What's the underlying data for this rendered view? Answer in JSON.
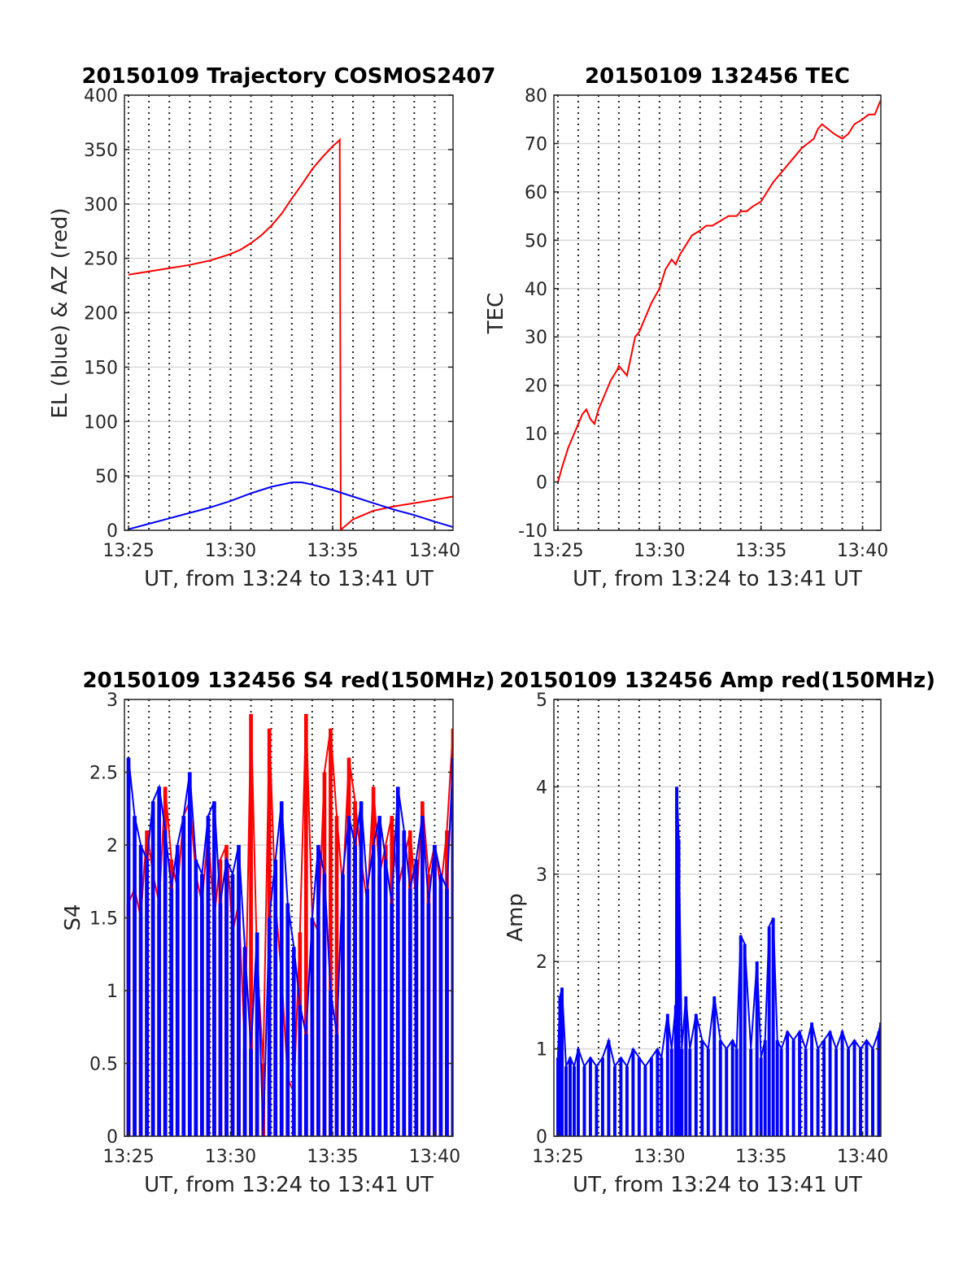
{
  "figure": {
    "colors": {
      "red": "#ff0000",
      "blue": "#0000ff",
      "grid": "#262626",
      "axis": "#262626"
    }
  },
  "chart_data": [
    {
      "id": "trajectory",
      "type": "line",
      "title": "20150109 Trajectory COSMOS2407",
      "xlabel": "UT, from 13:24 to 13:41 UT",
      "ylabel": "EL (blue) & AZ (red)",
      "xlim_minutes": [
        24.8,
        40.9
      ],
      "xticks": [
        {
          "value": 25,
          "label": "13:25"
        },
        {
          "value": 30,
          "label": "13:30"
        },
        {
          "value": 35,
          "label": "13:35"
        },
        {
          "value": 40,
          "label": "13:40"
        }
      ],
      "ylim": [
        0,
        400
      ],
      "yticks": [
        0,
        50,
        100,
        150,
        200,
        250,
        300,
        350,
        400
      ],
      "vertical_dotted_grid_minutes": [
        25,
        26,
        27,
        28,
        29,
        30,
        31,
        32,
        33,
        34,
        35,
        36,
        37,
        38,
        39,
        40
      ],
      "horizontal_grid": true,
      "series": [
        {
          "color": "red",
          "x": [
            25.0,
            26.0,
            27.0,
            28.0,
            29.0,
            30.0,
            30.5,
            31.0,
            31.5,
            32.0,
            32.5,
            33.0,
            33.5,
            34.0,
            34.5,
            35.0,
            35.3,
            35.35,
            35.4,
            35.5,
            36.0,
            37.0,
            38.0,
            39.0,
            40.0,
            40.9
          ],
          "y": [
            235,
            238,
            241,
            244,
            248,
            254,
            258,
            264,
            271,
            280,
            291,
            305,
            318,
            332,
            343,
            353,
            358,
            359,
            0,
            2,
            10,
            18,
            22,
            25,
            28,
            31
          ]
        },
        {
          "color": "blue",
          "x": [
            25.0,
            26.0,
            27.0,
            28.0,
            29.0,
            30.0,
            31.0,
            32.0,
            33.0,
            33.5,
            34.0,
            35.0,
            36.0,
            37.0,
            38.0,
            39.0,
            40.0,
            40.9
          ],
          "y": [
            1,
            6,
            11,
            16,
            21,
            27,
            34,
            40,
            44,
            44,
            42,
            37,
            31,
            25,
            19,
            14,
            8,
            3
          ]
        }
      ]
    },
    {
      "id": "tec",
      "type": "line",
      "title": "20150109 132456 TEC",
      "xlabel": "UT, from 13:24 to 13:41 UT",
      "ylabel": "TEC",
      "xlim_minutes": [
        24.8,
        40.9
      ],
      "xticks": [
        {
          "value": 25,
          "label": "13:25"
        },
        {
          "value": 30,
          "label": "13:30"
        },
        {
          "value": 35,
          "label": "13:35"
        },
        {
          "value": 40,
          "label": "13:40"
        }
      ],
      "ylim": [
        -10,
        80
      ],
      "yticks": [
        -10,
        0,
        10,
        20,
        30,
        40,
        50,
        60,
        70,
        80
      ],
      "vertical_dotted_grid_minutes": [
        25,
        26,
        27,
        28,
        29,
        30,
        31,
        32,
        33,
        34,
        35,
        36,
        37,
        38,
        39,
        40
      ],
      "horizontal_grid": true,
      "series": [
        {
          "color": "red",
          "x": [
            25.0,
            25.2,
            25.5,
            25.8,
            26.0,
            26.2,
            26.4,
            26.6,
            26.8,
            27.0,
            27.3,
            27.6,
            27.9,
            28.0,
            28.2,
            28.4,
            28.6,
            28.8,
            29.0,
            29.3,
            29.6,
            30.0,
            30.3,
            30.6,
            30.8,
            31.0,
            31.3,
            31.6,
            32.0,
            32.3,
            32.6,
            33.0,
            33.4,
            33.8,
            34.0,
            34.3,
            34.6,
            35.0,
            35.3,
            35.6,
            36.0,
            36.4,
            36.8,
            37.0,
            37.3,
            37.6,
            37.8,
            38.0,
            38.3,
            38.6,
            39.0,
            39.3,
            39.6,
            40.0,
            40.3,
            40.6,
            40.9
          ],
          "y": [
            0,
            3,
            7,
            10,
            12,
            14,
            15,
            13,
            12,
            15,
            18,
            21,
            23,
            24,
            23,
            22,
            26,
            30,
            31,
            34,
            37,
            40,
            44,
            46,
            45,
            47,
            49,
            51,
            52,
            53,
            53,
            54,
            55,
            55,
            56,
            56,
            57,
            58,
            60,
            62,
            64,
            66,
            68,
            69,
            70,
            71,
            73,
            74,
            73,
            72,
            71,
            72,
            74,
            75,
            76,
            76,
            79
          ]
        }
      ]
    },
    {
      "id": "s4",
      "type": "bar",
      "title": "20150109 132456 S4 red(150MHz)",
      "xlabel": "UT, from 13:24 to 13:41 UT",
      "ylabel": "S4",
      "xlim_minutes": [
        24.8,
        40.9
      ],
      "xticks": [
        {
          "value": 25,
          "label": "13:25"
        },
        {
          "value": 30,
          "label": "13:30"
        },
        {
          "value": 35,
          "label": "13:35"
        },
        {
          "value": 40,
          "label": "13:40"
        }
      ],
      "ylim": [
        0,
        3
      ],
      "yticks": [
        {
          "value": 0,
          "label": "0"
        },
        {
          "value": 0.5,
          "label": "0.5"
        },
        {
          "value": 1,
          "label": "1"
        },
        {
          "value": 1.5,
          "label": "1.5"
        },
        {
          "value": 2,
          "label": "2"
        },
        {
          "value": 2.5,
          "label": "2.5"
        },
        {
          "value": 3,
          "label": "3"
        }
      ],
      "vertical_dotted_grid_minutes": [
        25,
        26,
        27,
        28,
        29,
        30,
        31,
        32,
        33,
        34,
        35,
        36,
        37,
        38,
        39,
        40
      ],
      "horizontal_grid": true,
      "series": [
        {
          "color": "red",
          "x": [
            25.0,
            25.3,
            25.6,
            25.9,
            26.2,
            26.5,
            26.8,
            27.1,
            27.4,
            27.7,
            28.0,
            28.3,
            28.6,
            28.9,
            29.2,
            29.5,
            29.8,
            30.1,
            30.4,
            30.7,
            31.0,
            31.3,
            31.6,
            31.9,
            32.2,
            32.5,
            32.8,
            33.1,
            33.4,
            33.7,
            34.0,
            34.3,
            34.6,
            34.9,
            35.2,
            35.5,
            35.8,
            36.1,
            36.4,
            36.7,
            37.0,
            37.3,
            37.6,
            37.9,
            38.2,
            38.5,
            38.8,
            39.1,
            39.4,
            39.7,
            40.0,
            40.3,
            40.6,
            40.9
          ],
          "y": [
            1.6,
            1.7,
            1.5,
            2.1,
            1.8,
            1.6,
            2.4,
            1.9,
            1.7,
            2.2,
            2.3,
            1.8,
            1.6,
            2.1,
            1.5,
            1.9,
            2.0,
            1.4,
            1.6,
            0.6,
            2.9,
            1.2,
            0.5,
            2.8,
            1.6,
            1.1,
            0.4,
            0.3,
            1.4,
            2.9,
            1.5,
            1.4,
            2.5,
            2.8,
            2.2,
            1.7,
            2.6,
            2.3,
            1.9,
            1.6,
            2.4,
            1.8,
            2.0,
            2.2,
            1.7,
            1.9,
            2.1,
            1.6,
            2.3,
            1.8,
            2.0,
            1.7,
            2.1,
            2.8
          ]
        },
        {
          "color": "blue",
          "x": [
            25.0,
            25.3,
            25.6,
            25.9,
            26.2,
            26.5,
            26.8,
            27.1,
            27.4,
            27.7,
            28.0,
            28.3,
            28.6,
            28.9,
            29.2,
            29.5,
            29.8,
            30.1,
            30.4,
            30.7,
            31.0,
            31.3,
            31.6,
            31.9,
            32.2,
            32.5,
            32.8,
            33.1,
            33.4,
            33.7,
            34.0,
            34.3,
            34.6,
            34.9,
            35.2,
            35.5,
            35.8,
            36.1,
            36.4,
            36.7,
            37.0,
            37.3,
            37.6,
            37.9,
            38.2,
            38.5,
            38.8,
            39.1,
            39.4,
            39.7,
            40.0,
            40.3,
            40.6,
            40.9
          ],
          "y": [
            2.6,
            2.2,
            2.0,
            1.9,
            2.3,
            2.4,
            2.1,
            1.7,
            2.0,
            2.2,
            2.5,
            1.9,
            1.8,
            2.2,
            2.3,
            1.6,
            1.9,
            1.8,
            2.0,
            1.3,
            0.6,
            1.4,
            0.0,
            1.5,
            1.9,
            2.3,
            1.6,
            1.3,
            0.9,
            0.7,
            1.5,
            2.0,
            1.8,
            1.0,
            0.7,
            1.8,
            2.2,
            2.0,
            2.3,
            1.7,
            2.0,
            2.2,
            1.9,
            1.6,
            2.4,
            2.1,
            1.7,
            1.9,
            2.2,
            1.6,
            2.0,
            1.8,
            1.7,
            2.6
          ]
        }
      ]
    },
    {
      "id": "amp",
      "type": "bar",
      "title": "20150109 132456 Amp red(150MHz)",
      "xlabel": "UT, from 13:24 to 13:41 UT",
      "ylabel": "Amp",
      "xlim_minutes": [
        24.8,
        40.9
      ],
      "xticks": [
        {
          "value": 25,
          "label": "13:25"
        },
        {
          "value": 30,
          "label": "13:30"
        },
        {
          "value": 35,
          "label": "13:35"
        },
        {
          "value": 40,
          "label": "13:40"
        }
      ],
      "ylim": [
        0,
        5
      ],
      "yticks": [
        0,
        1,
        2,
        3,
        4,
        5
      ],
      "vertical_dotted_grid_minutes": [
        25,
        26,
        27,
        28,
        29,
        30,
        31,
        32,
        33,
        34,
        35,
        36,
        37,
        38,
        39,
        40
      ],
      "horizontal_grid": true,
      "series": [
        {
          "color": "blue",
          "x": [
            25.0,
            25.1,
            25.2,
            25.4,
            25.6,
            25.8,
            26.0,
            26.3,
            26.6,
            26.9,
            27.2,
            27.5,
            27.8,
            28.1,
            28.4,
            28.7,
            29.0,
            29.3,
            29.6,
            29.9,
            30.1,
            30.4,
            30.6,
            30.8,
            30.85,
            30.95,
            31.1,
            31.3,
            31.5,
            31.8,
            32.1,
            32.4,
            32.7,
            33.0,
            33.3,
            33.6,
            33.8,
            34.0,
            34.2,
            34.5,
            34.8,
            35.0,
            35.2,
            35.4,
            35.6,
            35.8,
            36.0,
            36.3,
            36.6,
            36.9,
            37.2,
            37.5,
            37.8,
            38.1,
            38.4,
            38.7,
            39.0,
            39.3,
            39.6,
            39.9,
            40.2,
            40.5,
            40.8,
            40.9
          ],
          "y": [
            0.9,
            1.6,
            1.7,
            0.8,
            0.9,
            0.8,
            1.0,
            0.8,
            0.9,
            0.8,
            0.9,
            1.1,
            0.8,
            0.9,
            0.8,
            1.0,
            0.9,
            0.8,
            0.9,
            1.0,
            0.9,
            1.4,
            1.0,
            1.5,
            4.0,
            3.4,
            1.0,
            1.6,
            1.0,
            1.4,
            1.1,
            1.0,
            1.6,
            1.1,
            1.0,
            1.1,
            1.0,
            2.3,
            2.2,
            1.0,
            2.0,
            0.9,
            1.1,
            2.4,
            2.5,
            1.1,
            1.0,
            1.2,
            1.1,
            1.2,
            1.0,
            1.3,
            1.0,
            1.1,
            1.2,
            1.0,
            1.2,
            1.0,
            1.1,
            1.0,
            1.1,
            1.0,
            1.2,
            1.3
          ]
        }
      ]
    }
  ]
}
